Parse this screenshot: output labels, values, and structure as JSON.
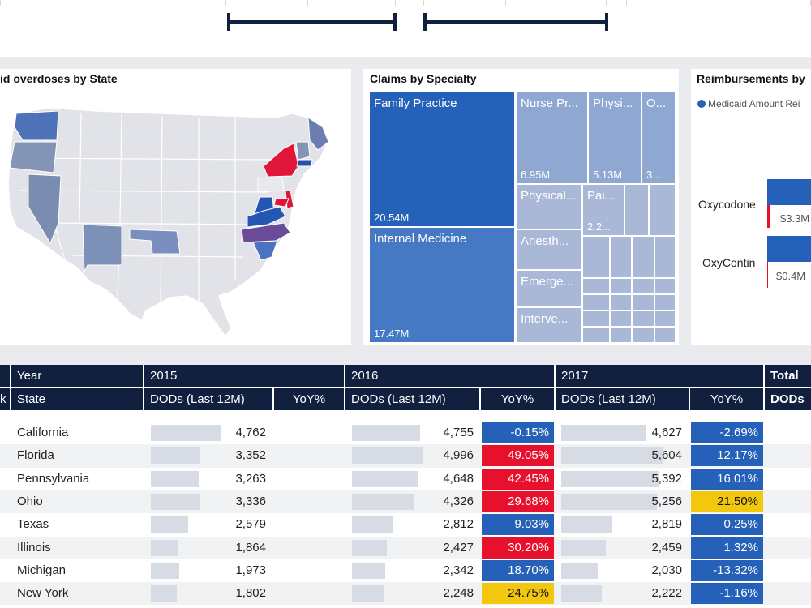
{
  "map_panel": {
    "title": "id overdoses by State"
  },
  "treemap": {
    "title": "Claims by Specialty",
    "cells": [
      {
        "label": "Family Practice",
        "value": "20.54M"
      },
      {
        "label": "Internal Medicine",
        "value": "17.47M"
      },
      {
        "label": "Nurse Pr...",
        "value": "6.95M"
      },
      {
        "label": "Physi...",
        "value": "5.13M"
      },
      {
        "label": "O...",
        "value": "3...."
      },
      {
        "label": "Physical...",
        "value": ""
      },
      {
        "label": "Pai...",
        "value": "2.2..."
      },
      {
        "label": "Anesth...",
        "value": ""
      },
      {
        "label": "Emerge...",
        "value": ""
      },
      {
        "label": "Interve...",
        "value": ""
      }
    ]
  },
  "reimbursements": {
    "title": "Reimbursements by",
    "legend": "Medicaid Amount Rei",
    "bars": [
      {
        "label": "Oxycodone",
        "value": "$3.3M"
      },
      {
        "label": "OxyContin",
        "value": "$0.4M"
      }
    ]
  },
  "colors": {
    "navy": "#122040",
    "blue": "#2561b8",
    "red": "#e8112d",
    "yellow": "#f2c80f",
    "purple": "#6b4c9a"
  },
  "table": {
    "header_row1": {
      "col0": "",
      "col1": "Year",
      "y2015": "2015",
      "y2016": "2016",
      "y2017": "2017",
      "total": "Total"
    },
    "header_row2": {
      "col0": "k",
      "state": "State",
      "dods": "DODs (Last 12M)",
      "yoy": "YoY%",
      "total_dods": "DODs"
    },
    "rows": [
      {
        "state": "California",
        "d2015": "4,762",
        "d2016": "4,755",
        "y2016": "-0.15%",
        "d2017": "4,627",
        "y2017": "-2.69%",
        "f2015": 0.88,
        "f2016": 0.86,
        "f2017": 0.83,
        "c2016": "blue",
        "c2017": "blue"
      },
      {
        "state": "Florida",
        "d2015": "3,352",
        "d2016": "4,996",
        "y2016": "49.05%",
        "d2017": "5,604",
        "y2017": "12.17%",
        "f2015": 0.62,
        "f2016": 0.9,
        "f2017": 1.0,
        "c2016": "red",
        "c2017": "blue"
      },
      {
        "state": "Pennsylvania",
        "d2015": "3,263",
        "d2016": "4,648",
        "y2016": "42.45%",
        "d2017": "5,392",
        "y2017": "16.01%",
        "f2015": 0.6,
        "f2016": 0.84,
        "f2017": 0.96,
        "c2016": "red",
        "c2017": "blue"
      },
      {
        "state": "Ohio",
        "d2015": "3,336",
        "d2016": "4,326",
        "y2016": "29.68%",
        "d2017": "5,256",
        "y2017": "21.50%",
        "f2015": 0.61,
        "f2016": 0.78,
        "f2017": 0.94,
        "c2016": "red",
        "c2017": "yellow"
      },
      {
        "state": "Texas",
        "d2015": "2,579",
        "d2016": "2,812",
        "y2016": "9.03%",
        "d2017": "2,819",
        "y2017": "0.25%",
        "f2015": 0.47,
        "f2016": 0.51,
        "f2017": 0.5,
        "c2016": "blue",
        "c2017": "blue"
      },
      {
        "state": "Illinois",
        "d2015": "1,864",
        "d2016": "2,427",
        "y2016": "30.20%",
        "d2017": "2,459",
        "y2017": "1.32%",
        "f2015": 0.34,
        "f2016": 0.44,
        "f2017": 0.44,
        "c2016": "red",
        "c2017": "blue"
      },
      {
        "state": "Michigan",
        "d2015": "1,973",
        "d2016": "2,342",
        "y2016": "18.70%",
        "d2017": "2,030",
        "y2017": "-13.32%",
        "f2015": 0.36,
        "f2016": 0.42,
        "f2017": 0.36,
        "c2016": "blue",
        "c2017": "blue"
      },
      {
        "state": "New York",
        "d2015": "1,802",
        "d2016": "2,248",
        "y2016": "24.75%",
        "d2017": "2,222",
        "y2017": "-1.16%",
        "f2015": 0.33,
        "f2016": 0.41,
        "f2017": 0.4,
        "c2016": "yellow",
        "c2017": "blue"
      }
    ]
  }
}
